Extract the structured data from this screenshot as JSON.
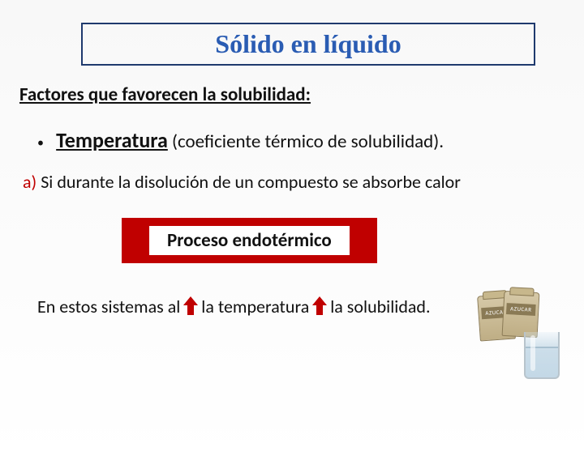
{
  "title": "Sólido en líquido",
  "title_color": "#2a5cb3",
  "title_border_color": "#1f3a6e",
  "subtitle": "Factores que favorecen la solubilidad:",
  "bullet": {
    "key": "Temperatura",
    "rest": " (coeficiente térmico de solubilidad)."
  },
  "item_a": {
    "label": "a)",
    "label_color": "#c00000",
    "text": " Si durante la disolución de un compuesto se absorbe calor"
  },
  "badge": {
    "text": "Proceso endotérmico",
    "bg_color": "#c00000",
    "inner_bg": "#ffffff"
  },
  "closing": {
    "part1": "En estos sistemas al ",
    "part2": " la temperatura",
    "part3": " la solubilidad.",
    "arrow_color": "#c00000"
  },
  "illustration": {
    "bag_label": "AZUCAR"
  },
  "typography": {
    "title_fontsize": 32,
    "body_fontsize": 22
  }
}
